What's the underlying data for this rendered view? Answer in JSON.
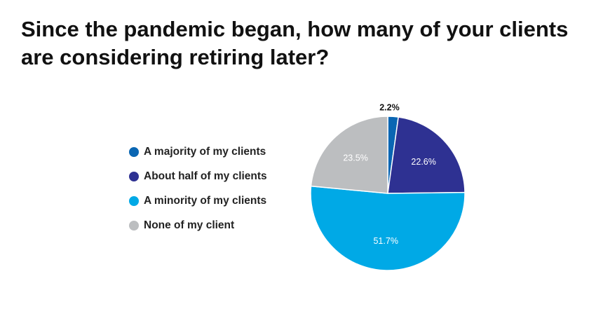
{
  "chart_data": {
    "type": "pie",
    "title": "Since the pandemic began, how many of your clients are considering retiring later?",
    "categories": [
      "A majority of my clients",
      "About half of my clients",
      "A minority of my clients",
      "None of my client"
    ],
    "values": [
      2.2,
      22.6,
      51.7,
      23.5
    ],
    "labels": [
      "2.2%",
      "22.6%",
      "51.7%",
      "23.5%"
    ],
    "colors": [
      "#0a66b3",
      "#2e3192",
      "#00a9e6",
      "#bcbec0"
    ],
    "label_colors": [
      "#111111",
      "#ffffff",
      "#ffffff",
      "#ffffff"
    ],
    "legend": "left"
  }
}
